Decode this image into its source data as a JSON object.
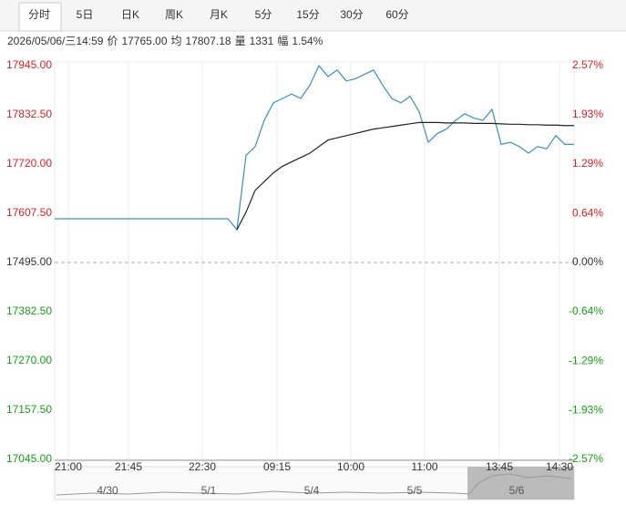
{
  "tabs": [
    "分时",
    "5日",
    "日K",
    "周K",
    "月K",
    "5分",
    "15分",
    "30分",
    "60分"
  ],
  "active_tab": 0,
  "info": {
    "datetime": "2026/05/06/三14:59",
    "price_label": "价",
    "price": "17765.00",
    "avg_label": "均",
    "avg": "17807.18",
    "volume_label": "量",
    "volume": "1331",
    "range_label": "幅",
    "range": "1.54%"
  },
  "chart_data": {
    "type": "line",
    "xlim": [
      0,
      57
    ],
    "xticks": [
      {
        "value": 1.5,
        "label": "21:00"
      },
      {
        "value": 8.1,
        "label": "21:45"
      },
      {
        "value": 16.2,
        "label": "22:30"
      },
      {
        "value": 24.4,
        "label": "09:15"
      },
      {
        "value": 32.5,
        "label": "10:00"
      },
      {
        "value": 40.6,
        "label": "11:00"
      },
      {
        "value": 48.8,
        "label": "13:45"
      },
      {
        "value": 55.4,
        "label": "14:30"
      }
    ],
    "ylim": [
      17045,
      17945
    ],
    "yticks": [
      {
        "value": 17945,
        "label": "17945.00"
      },
      {
        "value": 17832.5,
        "label": "17832.50"
      },
      {
        "value": 17720,
        "label": "17720.00"
      },
      {
        "value": 17607.5,
        "label": "17607.50"
      },
      {
        "value": 17495,
        "label": "17495.00"
      },
      {
        "value": 17382.5,
        "label": "17382.50"
      },
      {
        "value": 17270,
        "label": "17270.00"
      },
      {
        "value": 17157.5,
        "label": "17157.50"
      },
      {
        "value": 17045,
        "label": "17045.00"
      }
    ],
    "y2lim": [
      -2.57,
      2.57
    ],
    "y2ticks": [
      {
        "value": 2.57,
        "label": "2.57%"
      },
      {
        "value": 1.93,
        "label": "1.93%"
      },
      {
        "value": 1.29,
        "label": "1.29%"
      },
      {
        "value": 0.64,
        "label": "0.64%"
      },
      {
        "value": 0,
        "label": "0.00%"
      },
      {
        "value": -0.64,
        "label": "-0.64%"
      },
      {
        "value": -1.29,
        "label": "-1.29%"
      },
      {
        "value": -1.93,
        "label": "-1.93%"
      },
      {
        "value": -2.57,
        "label": "-2.57%"
      }
    ],
    "base": 17495,
    "up_color": "#e02020",
    "down_color": "#18a018",
    "grid": true,
    "series": [
      {
        "color": "#3a8fc0",
        "values": [
          17595,
          17595,
          17595,
          17595,
          17595,
          17595,
          17595,
          17595,
          17595,
          17595,
          17595,
          17595,
          17595,
          17595,
          17595,
          17595,
          17595,
          17595,
          17595,
          17595,
          17570,
          17740,
          17760,
          17820,
          17860,
          17870,
          17880,
          17870,
          17900,
          17945,
          17920,
          17935,
          17910,
          17915,
          17925,
          17935,
          17900,
          17870,
          17860,
          17875,
          17840,
          17770,
          17790,
          17800,
          17820,
          17835,
          17825,
          17820,
          17845,
          17765,
          17770,
          17760,
          17745,
          17760,
          17755,
          17785,
          17765,
          17765
        ]
      },
      {
        "color": "#222222",
        "values": [
          null,
          null,
          null,
          null,
          null,
          null,
          null,
          null,
          null,
          null,
          null,
          null,
          null,
          null,
          null,
          null,
          null,
          null,
          null,
          null,
          17570,
          17610,
          17660,
          17680,
          17700,
          17715,
          17725,
          17735,
          17745,
          17760,
          17775,
          17780,
          17785,
          17790,
          17795,
          17800,
          17803,
          17806,
          17809,
          17812,
          17815,
          17815,
          17815,
          17814,
          17814,
          17814,
          17813,
          17813,
          17813,
          17812,
          17811,
          17811,
          17810,
          17810,
          17809,
          17809,
          17808,
          17808
        ]
      }
    ]
  },
  "navigator": {
    "labels": [
      "4/30",
      "5/1",
      "5/4",
      "5/5",
      "5/6"
    ]
  }
}
